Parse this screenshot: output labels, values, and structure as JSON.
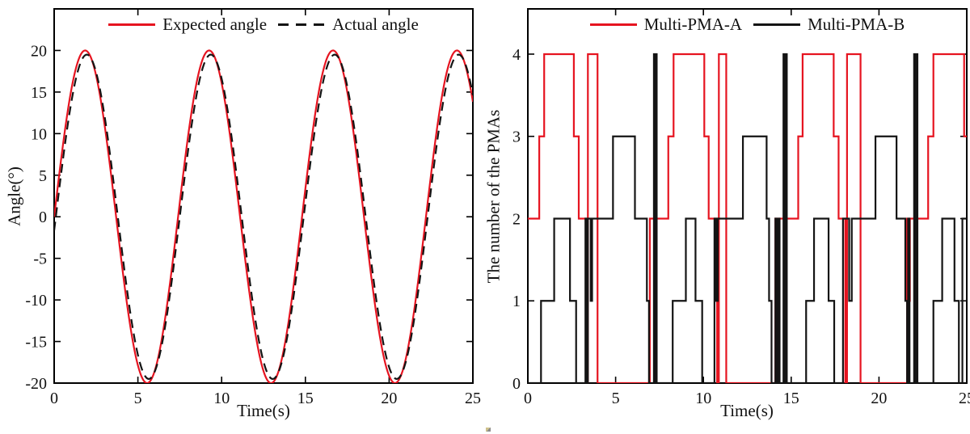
{
  "figure": {
    "background": "#ffffff",
    "axis_color": "#000000",
    "text_color": "#111111"
  },
  "chart_data": [
    {
      "type": "line",
      "title": "",
      "xlabel": "Time(s)",
      "ylabel": "Angle(°)",
      "xlim": [
        0,
        25
      ],
      "ylim": [
        -20,
        25
      ],
      "xticks": [
        0,
        5,
        10,
        15,
        20,
        25
      ],
      "yticks": [
        -20,
        -15,
        -10,
        -5,
        0,
        5,
        10,
        15,
        20
      ],
      "grid": false,
      "legend_position": "top-center-inside",
      "legend": [
        {
          "label": "Expected angle",
          "line": "solid",
          "color": "#e61420"
        },
        {
          "label": "Actual angle",
          "line": "dashed",
          "color": "#141414"
        }
      ],
      "series": [
        {
          "name": "Expected angle",
          "color": "#e61420",
          "style": "solid",
          "model": "sine",
          "amplitude_deg": 20,
          "period_s": 7.4,
          "phase_lag_s": 0,
          "description": "20*sin(2*pi*t/7.4), t from 0 to 25 s"
        },
        {
          "name": "Actual angle",
          "color": "#141414",
          "style": "dashed",
          "model": "sine",
          "amplitude_deg": 19.5,
          "period_s": 7.4,
          "phase_lag_s": 0.1,
          "description": "19.5*sin(2*pi*(t-0.1)/7.4), t from 0 to 25 s"
        }
      ]
    },
    {
      "type": "step",
      "title": "",
      "xlabel": "Time(s)",
      "ylabel": "The number of the PMAs",
      "xlim": [
        0,
        25
      ],
      "ylim": [
        0,
        4.55
      ],
      "xticks": [
        0,
        5,
        10,
        15,
        20,
        25
      ],
      "yticks": [
        0,
        1,
        2,
        3,
        4
      ],
      "grid": false,
      "legend_position": "top-center-inside",
      "legend": [
        {
          "label": "Multi-PMA-A",
          "line": "solid",
          "color": "#e61420"
        },
        {
          "label": "Multi-PMA-B",
          "line": "solid",
          "color": "#141414"
        }
      ],
      "series": [
        {
          "name": "Multi-PMA-A",
          "color": "#e61420",
          "style": "solid",
          "steps": [
            [
              0,
              2
            ],
            [
              0.65,
              3
            ],
            [
              0.93,
              4
            ],
            [
              2.62,
              3
            ],
            [
              2.9,
              2
            ],
            [
              3.3,
              0
            ],
            [
              3.42,
              4
            ],
            [
              3.97,
              0
            ],
            [
              6.95,
              2
            ],
            [
              8.0,
              3
            ],
            [
              8.3,
              4
            ],
            [
              10.05,
              3
            ],
            [
              10.3,
              2
            ],
            [
              10.78,
              0
            ],
            [
              10.88,
              4
            ],
            [
              11.3,
              0
            ],
            [
              14.1,
              2
            ],
            [
              14.18,
              0
            ],
            [
              14.3,
              2
            ],
            [
              15.4,
              3
            ],
            [
              15.65,
              4
            ],
            [
              17.42,
              3
            ],
            [
              17.7,
              2
            ],
            [
              18.08,
              0
            ],
            [
              18.18,
              4
            ],
            [
              18.95,
              0
            ],
            [
              21.6,
              2
            ],
            [
              21.68,
              1
            ],
            [
              21.76,
              2
            ],
            [
              22.8,
              3
            ],
            [
              23.1,
              4
            ],
            [
              24.85,
              3
            ]
          ]
        },
        {
          "name": "Multi-PMA-B",
          "color": "#141414",
          "style": "solid",
          "steps": [
            [
              0,
              0
            ],
            [
              0.75,
              1
            ],
            [
              1.5,
              2
            ],
            [
              2.4,
              1
            ],
            [
              2.75,
              0
            ],
            [
              3.28,
              2
            ],
            [
              3.34,
              0
            ],
            [
              3.42,
              2
            ],
            [
              3.58,
              1
            ],
            [
              3.66,
              2
            ],
            [
              4.85,
              3
            ],
            [
              6.1,
              2
            ],
            [
              6.78,
              1
            ],
            [
              6.9,
              0
            ],
            [
              7.18,
              4
            ],
            [
              7.24,
              0
            ],
            [
              7.28,
              4
            ],
            [
              7.34,
              0
            ],
            [
              8.25,
              1
            ],
            [
              9.0,
              2
            ],
            [
              9.55,
              1
            ],
            [
              9.93,
              0
            ],
            [
              10.63,
              2
            ],
            [
              10.72,
              1
            ],
            [
              10.82,
              2
            ],
            [
              12.25,
              3
            ],
            [
              13.6,
              2
            ],
            [
              13.74,
              1
            ],
            [
              13.88,
              0
            ],
            [
              14.1,
              2
            ],
            [
              14.16,
              0
            ],
            [
              14.26,
              2
            ],
            [
              14.34,
              0
            ],
            [
              14.56,
              4
            ],
            [
              14.63,
              0
            ],
            [
              14.68,
              4
            ],
            [
              14.75,
              0
            ],
            [
              15.85,
              1
            ],
            [
              16.3,
              2
            ],
            [
              17.13,
              1
            ],
            [
              17.45,
              0
            ],
            [
              17.95,
              2
            ],
            [
              18.3,
              1
            ],
            [
              18.45,
              2
            ],
            [
              19.8,
              3
            ],
            [
              21.0,
              2
            ],
            [
              21.5,
              1
            ],
            [
              21.6,
              0
            ],
            [
              21.66,
              2
            ],
            [
              21.74,
              0
            ],
            [
              22.0,
              4
            ],
            [
              22.07,
              0
            ],
            [
              22.12,
              4
            ],
            [
              22.19,
              0
            ],
            [
              23.1,
              1
            ],
            [
              23.6,
              2
            ],
            [
              24.3,
              1
            ],
            [
              24.55,
              0
            ],
            [
              24.75,
              2
            ]
          ]
        }
      ]
    }
  ]
}
